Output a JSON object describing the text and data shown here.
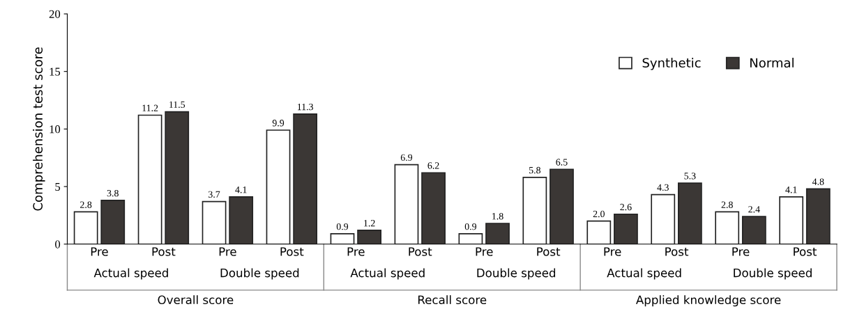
{
  "chart_data": {
    "type": "bar",
    "ylabel": "Comprehension test score",
    "categories": [
      "Pre",
      "Post",
      "Pre",
      "Post",
      "Pre",
      "Post",
      "Pre",
      "Post",
      "Pre",
      "Post",
      "Pre",
      "Post"
    ],
    "series": [
      {
        "name": "Synthetic",
        "color": "#ffffff",
        "values": [
          2.8,
          11.2,
          3.7,
          9.9,
          0.9,
          6.9,
          0.9,
          5.8,
          2.0,
          4.3,
          2.8,
          4.1
        ],
        "value_labels": [
          "2.8",
          "11.2",
          "3.7",
          "9.9",
          "0.9",
          "6.9",
          "0.9",
          "5.8",
          "2.0",
          "4.3",
          "2.8",
          "4.1"
        ]
      },
      {
        "name": "Normal",
        "color": "#3b3735",
        "values": [
          3.8,
          11.5,
          4.1,
          11.3,
          1.2,
          6.2,
          1.8,
          6.5,
          2.6,
          5.3,
          2.4,
          4.8
        ],
        "value_labels": [
          "3.8",
          "11.5",
          "4.1",
          "11.3",
          "1.2",
          "6.2",
          "1.8",
          "6.5",
          "2.6",
          "5.3",
          "2.4",
          "4.8"
        ]
      }
    ],
    "annotations": [
      "Actual speed",
      "Double speed",
      "Actual speed",
      "Double speed",
      "Actual speed",
      "Double speed",
      "Overall score",
      "Recall score",
      "Applied knowledge score"
    ],
    "ylim": [
      0,
      20
    ],
    "yticks": [
      0,
      5,
      10,
      15,
      20
    ],
    "legend": "top right",
    "grid": false
  }
}
